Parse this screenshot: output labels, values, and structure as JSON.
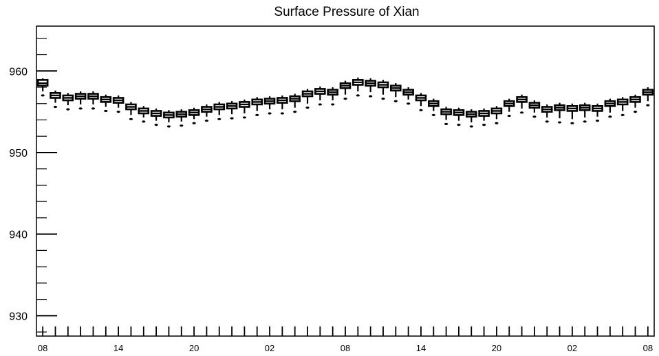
{
  "chart_data": {
    "type": "box",
    "title": "Surface Pressure of Xian",
    "xlabel": "",
    "ylabel": "",
    "ylim": [
      927.5,
      965.5
    ],
    "y_ticks": [
      "930",
      "940",
      "950",
      "960"
    ],
    "x_tick_labels": [
      "08",
      "14",
      "20",
      "02",
      "08",
      "14",
      "20",
      "02",
      "08"
    ],
    "x_tick_positions": [
      0,
      6,
      12,
      18,
      24,
      30,
      36,
      42,
      48
    ],
    "x_range": [
      -0.5,
      48.5
    ],
    "grid": false,
    "series": [
      {
        "boxes": [
          {
            "x": 0,
            "min": 957.0,
            "q1": 958.2,
            "median": 958.5,
            "q3": 958.9,
            "max": 959.1,
            "outlier": 957.0
          },
          {
            "x": 1,
            "min": 955.6,
            "q1": 956.7,
            "median": 957.0,
            "q3": 957.3,
            "max": 957.6,
            "outlier": 955.6
          },
          {
            "x": 2,
            "min": 955.3,
            "q1": 956.4,
            "median": 956.7,
            "q3": 957.0,
            "max": 957.3,
            "outlier": 955.3
          },
          {
            "x": 3,
            "min": 955.4,
            "q1": 956.6,
            "median": 956.9,
            "q3": 957.2,
            "max": 957.5,
            "outlier": 955.4
          },
          {
            "x": 4,
            "min": 955.4,
            "q1": 956.6,
            "median": 956.9,
            "q3": 957.2,
            "max": 957.5,
            "outlier": 955.4
          },
          {
            "x": 5,
            "min": 955.1,
            "q1": 956.2,
            "median": 956.5,
            "q3": 956.8,
            "max": 957.1,
            "outlier": 955.1
          },
          {
            "x": 6,
            "min": 955.0,
            "q1": 956.1,
            "median": 956.4,
            "q3": 956.7,
            "max": 957.0,
            "outlier": 955.0
          },
          {
            "x": 7,
            "min": 954.1,
            "q1": 955.3,
            "median": 955.6,
            "q3": 955.9,
            "max": 956.2,
            "outlier": 954.1
          },
          {
            "x": 8,
            "min": 953.8,
            "q1": 954.8,
            "median": 955.1,
            "q3": 955.4,
            "max": 955.7,
            "outlier": 953.8
          },
          {
            "x": 9,
            "min": 953.4,
            "q1": 954.5,
            "median": 954.8,
            "q3": 955.1,
            "max": 955.4,
            "outlier": 953.4
          },
          {
            "x": 10,
            "min": 953.2,
            "q1": 954.3,
            "median": 954.6,
            "q3": 954.9,
            "max": 955.2,
            "outlier": 953.2
          },
          {
            "x": 11,
            "min": 953.3,
            "q1": 954.4,
            "median": 954.7,
            "q3": 955.0,
            "max": 955.3,
            "outlier": 953.3
          },
          {
            "x": 12,
            "min": 953.6,
            "q1": 954.6,
            "median": 954.9,
            "q3": 955.2,
            "max": 955.5,
            "outlier": 953.6
          },
          {
            "x": 13,
            "min": 953.9,
            "q1": 955.0,
            "median": 955.3,
            "q3": 955.6,
            "max": 955.9,
            "outlier": 953.9
          },
          {
            "x": 14,
            "min": 954.1,
            "q1": 955.3,
            "median": 955.6,
            "q3": 955.9,
            "max": 956.2,
            "outlier": 954.1
          },
          {
            "x": 15,
            "min": 954.2,
            "q1": 955.4,
            "median": 955.7,
            "q3": 956.0,
            "max": 956.3,
            "outlier": 954.2
          },
          {
            "x": 16,
            "min": 954.3,
            "q1": 955.6,
            "median": 955.9,
            "q3": 956.2,
            "max": 956.5,
            "outlier": 954.3
          },
          {
            "x": 17,
            "min": 954.6,
            "q1": 955.9,
            "median": 956.2,
            "q3": 956.5,
            "max": 956.8,
            "outlier": 954.6
          },
          {
            "x": 18,
            "min": 954.8,
            "q1": 956.0,
            "median": 956.3,
            "q3": 956.6,
            "max": 956.9,
            "outlier": 954.8
          },
          {
            "x": 19,
            "min": 954.8,
            "q1": 956.1,
            "median": 956.4,
            "q3": 956.7,
            "max": 957.0,
            "outlier": 954.8
          },
          {
            "x": 20,
            "min": 955.0,
            "q1": 956.3,
            "median": 956.6,
            "q3": 956.9,
            "max": 957.2,
            "outlier": 955.0
          },
          {
            "x": 21,
            "min": 955.5,
            "q1": 956.9,
            "median": 957.2,
            "q3": 957.5,
            "max": 957.8,
            "outlier": 955.5
          },
          {
            "x": 22,
            "min": 955.9,
            "q1": 957.2,
            "median": 957.5,
            "q3": 957.8,
            "max": 958.1,
            "outlier": 955.9
          },
          {
            "x": 23,
            "min": 955.9,
            "q1": 957.1,
            "median": 957.4,
            "q3": 957.7,
            "max": 958.0,
            "outlier": 955.9
          },
          {
            "x": 24,
            "min": 956.6,
            "q1": 957.9,
            "median": 958.2,
            "q3": 958.5,
            "max": 958.8,
            "outlier": 956.6
          },
          {
            "x": 25,
            "min": 957.0,
            "q1": 958.3,
            "median": 958.6,
            "q3": 958.9,
            "max": 959.2,
            "outlier": 957.0
          },
          {
            "x": 26,
            "min": 956.9,
            "q1": 958.2,
            "median": 958.5,
            "q3": 958.8,
            "max": 959.1,
            "outlier": 956.9
          },
          {
            "x": 27,
            "min": 956.6,
            "q1": 958.0,
            "median": 958.3,
            "q3": 958.6,
            "max": 958.9,
            "outlier": 956.6
          },
          {
            "x": 28,
            "min": 956.3,
            "q1": 957.6,
            "median": 957.9,
            "q3": 958.2,
            "max": 958.5,
            "outlier": 956.3
          },
          {
            "x": 29,
            "min": 956.0,
            "q1": 957.1,
            "median": 957.4,
            "q3": 957.7,
            "max": 958.0,
            "outlier": 956.0
          },
          {
            "x": 30,
            "min": 955.2,
            "q1": 956.4,
            "median": 956.7,
            "q3": 957.0,
            "max": 957.3,
            "outlier": 955.2
          },
          {
            "x": 31,
            "min": 954.6,
            "q1": 955.7,
            "median": 956.0,
            "q3": 956.3,
            "max": 956.6,
            "outlier": 954.6
          },
          {
            "x": 32,
            "min": 953.5,
            "q1": 954.7,
            "median": 955.0,
            "q3": 955.3,
            "max": 955.6,
            "outlier": 953.5
          },
          {
            "x": 33,
            "min": 953.4,
            "q1": 954.6,
            "median": 954.9,
            "q3": 955.2,
            "max": 955.5,
            "outlier": 953.4
          },
          {
            "x": 34,
            "min": 953.2,
            "q1": 954.4,
            "median": 954.7,
            "q3": 955.0,
            "max": 955.3,
            "outlier": 953.2
          },
          {
            "x": 35,
            "min": 953.4,
            "q1": 954.5,
            "median": 954.8,
            "q3": 955.1,
            "max": 955.4,
            "outlier": 953.4
          },
          {
            "x": 36,
            "min": 953.6,
            "q1": 954.8,
            "median": 955.1,
            "q3": 955.4,
            "max": 955.7,
            "outlier": 953.6
          },
          {
            "x": 37,
            "min": 954.5,
            "q1": 955.7,
            "median": 956.0,
            "q3": 956.3,
            "max": 956.6,
            "outlier": 954.5
          },
          {
            "x": 38,
            "min": 954.9,
            "q1": 956.2,
            "median": 956.5,
            "q3": 956.8,
            "max": 957.1,
            "outlier": 954.9
          },
          {
            "x": 39,
            "min": 954.4,
            "q1": 955.5,
            "median": 955.8,
            "q3": 956.1,
            "max": 956.4,
            "outlier": 954.4
          },
          {
            "x": 40,
            "min": 953.8,
            "q1": 955.0,
            "median": 955.3,
            "q3": 955.6,
            "max": 955.9,
            "outlier": 953.8
          },
          {
            "x": 41,
            "min": 953.7,
            "q1": 955.2,
            "median": 955.5,
            "q3": 955.8,
            "max": 956.1,
            "outlier": 953.7
          },
          {
            "x": 42,
            "min": 953.6,
            "q1": 955.1,
            "median": 955.4,
            "q3": 955.7,
            "max": 956.0,
            "outlier": 953.6
          },
          {
            "x": 43,
            "min": 953.8,
            "q1": 955.2,
            "median": 955.5,
            "q3": 955.8,
            "max": 956.1,
            "outlier": 953.8
          },
          {
            "x": 44,
            "min": 953.9,
            "q1": 955.1,
            "median": 955.4,
            "q3": 955.7,
            "max": 956.0,
            "outlier": 953.9
          },
          {
            "x": 45,
            "min": 954.4,
            "q1": 955.7,
            "median": 956.0,
            "q3": 956.3,
            "max": 956.6,
            "outlier": 954.4
          },
          {
            "x": 46,
            "min": 954.6,
            "q1": 955.9,
            "median": 956.2,
            "q3": 956.5,
            "max": 956.8,
            "outlier": 954.6
          },
          {
            "x": 47,
            "min": 955.0,
            "q1": 956.2,
            "median": 956.5,
            "q3": 956.8,
            "max": 957.1,
            "outlier": 955.0
          },
          {
            "x": 48,
            "min": 955.8,
            "q1": 957.1,
            "median": 957.4,
            "q3": 957.7,
            "max": 958.0,
            "outlier": 955.8
          }
        ]
      }
    ],
    "colors": {
      "box": "#000000",
      "axis": "#000000",
      "background": "#ffffff"
    }
  }
}
